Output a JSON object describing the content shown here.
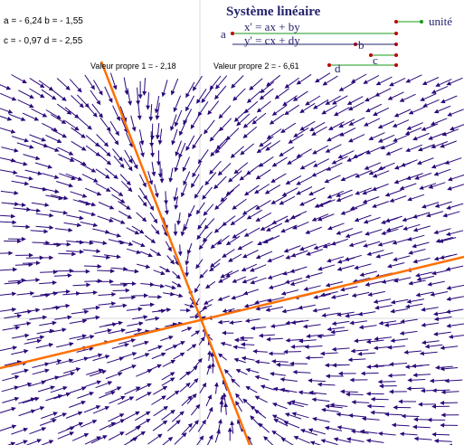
{
  "title": "Système linéaire",
  "params": {
    "line1": "a = - 6,24   b = - 1,55",
    "line2": "c = - 0,97   d = - 2,55",
    "a": -6.24,
    "b": -1.55,
    "c": -0.97,
    "d": -2.55
  },
  "eigen": {
    "value1": "Valeur propre 1 =  - 2,18",
    "value2": "Valeur propre 2 =  - 6,61"
  },
  "equations": {
    "x": "x' = ax + by",
    "y": "y' = cx + dy"
  },
  "sliders": {
    "unite": "unité",
    "a": "a",
    "b": "b",
    "c": "c",
    "d": "d"
  },
  "colors": {
    "arrow": "#2b0a7a",
    "eigenvector": "#ff7000",
    "title": "#23236e",
    "slider": "#1a9a1a",
    "slider_point": "#c00000",
    "axis": "#d9d9d9"
  }
}
